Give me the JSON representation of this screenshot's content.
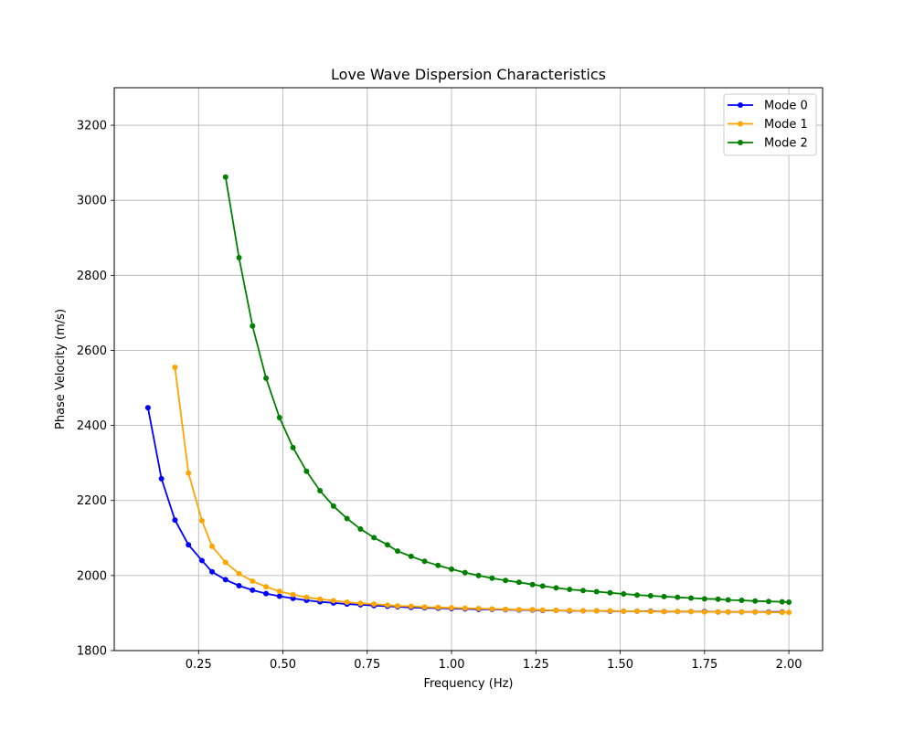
{
  "chart_data": {
    "type": "line",
    "title": "Love Wave Dispersion Characteristics",
    "xlabel": "Frequency (Hz)",
    "ylabel": "Phase Velocity (m/s)",
    "xlim": [
      0.0,
      2.1
    ],
    "ylim": [
      1800,
      3300
    ],
    "xticks": [
      0.25,
      0.5,
      0.75,
      1.0,
      1.25,
      1.5,
      1.75,
      2.0
    ],
    "xtick_labels": [
      "0.25",
      "0.50",
      "0.75",
      "1.00",
      "1.25",
      "1.50",
      "1.75",
      "2.00"
    ],
    "yticks": [
      1800,
      2000,
      2200,
      2400,
      2600,
      2800,
      3000,
      3200
    ],
    "ytick_labels": [
      "1800",
      "2000",
      "2200",
      "2400",
      "2600",
      "2800",
      "3000",
      "3200"
    ],
    "grid": true,
    "legend_position": "top-right",
    "series": [
      {
        "name": "Mode 0",
        "color": "#0000ff",
        "x": [
          0.1,
          0.14,
          0.18,
          0.22,
          0.26,
          0.29,
          0.33,
          0.37,
          0.41,
          0.45,
          0.49,
          0.53,
          0.57,
          0.61,
          0.65,
          0.69,
          0.73,
          0.77,
          0.81,
          0.84,
          0.88,
          0.92,
          0.96,
          1.0,
          1.04,
          1.08,
          1.12,
          1.16,
          1.2,
          1.24,
          1.27,
          1.31,
          1.35,
          1.39,
          1.43,
          1.47,
          1.51,
          1.55,
          1.59,
          1.63,
          1.67,
          1.71,
          1.75,
          1.79,
          1.82,
          1.86,
          1.9,
          1.94,
          1.98
        ],
        "y": [
          2447,
          2258,
          2148,
          2082,
          2040,
          2010,
          1989,
          1973,
          1961,
          1952,
          1945,
          1939,
          1934,
          1930,
          1927,
          1924,
          1922,
          1920,
          1918,
          1917,
          1915,
          1914,
          1913,
          1912,
          1911,
          1910,
          1910,
          1909,
          1908,
          1908,
          1907,
          1907,
          1906,
          1906,
          1906,
          1905,
          1905,
          1905,
          1905,
          1904,
          1904,
          1904,
          1904,
          1903,
          1903,
          1903,
          1903,
          1903,
          1903
        ]
      },
      {
        "name": "Mode 1",
        "color": "#ffa500",
        "x": [
          0.18,
          0.22,
          0.26,
          0.29,
          0.33,
          0.37,
          0.41,
          0.45,
          0.49,
          0.53,
          0.57,
          0.61,
          0.65,
          0.69,
          0.73,
          0.77,
          0.81,
          0.84,
          0.88,
          0.92,
          0.96,
          1.0,
          1.04,
          1.08,
          1.12,
          1.16,
          1.2,
          1.24,
          1.27,
          1.31,
          1.35,
          1.39,
          1.43,
          1.47,
          1.51,
          1.55,
          1.59,
          1.63,
          1.67,
          1.71,
          1.75,
          1.79,
          1.82,
          1.86,
          1.9,
          1.94,
          1.98,
          2.0
        ],
        "y": [
          2555,
          2273,
          2146,
          2078,
          2035,
          2005,
          1985,
          1970,
          1958,
          1949,
          1942,
          1937,
          1933,
          1929,
          1926,
          1924,
          1921,
          1919,
          1918,
          1916,
          1915,
          1914,
          1913,
          1912,
          1911,
          1910,
          1909,
          1909,
          1908,
          1907,
          1907,
          1906,
          1906,
          1906,
          1905,
          1905,
          1904,
          1904,
          1904,
          1904,
          1903,
          1903,
          1903,
          1903,
          1903,
          1902,
          1902,
          1902
        ]
      },
      {
        "name": "Mode 2",
        "color": "#008000",
        "x": [
          0.33,
          0.37,
          0.41,
          0.45,
          0.49,
          0.53,
          0.57,
          0.61,
          0.65,
          0.69,
          0.73,
          0.77,
          0.81,
          0.84,
          0.88,
          0.92,
          0.96,
          1.0,
          1.04,
          1.08,
          1.12,
          1.16,
          1.2,
          1.24,
          1.27,
          1.31,
          1.35,
          1.39,
          1.43,
          1.47,
          1.51,
          1.55,
          1.59,
          1.63,
          1.67,
          1.71,
          1.75,
          1.79,
          1.82,
          1.86,
          1.9,
          1.94,
          1.98,
          2.0
        ],
        "y": [
          3062,
          2847,
          2665,
          2526,
          2421,
          2341,
          2278,
          2226,
          2185,
          2152,
          2124,
          2101,
          2082,
          2065,
          2051,
          2038,
          2027,
          2017,
          2008,
          2000,
          1993,
          1987,
          1982,
          1976,
          1972,
          1967,
          1963,
          1960,
          1957,
          1954,
          1951,
          1948,
          1946,
          1944,
          1942,
          1940,
          1938,
          1937,
          1935,
          1934,
          1932,
          1931,
          1930,
          1929
        ]
      }
    ]
  }
}
